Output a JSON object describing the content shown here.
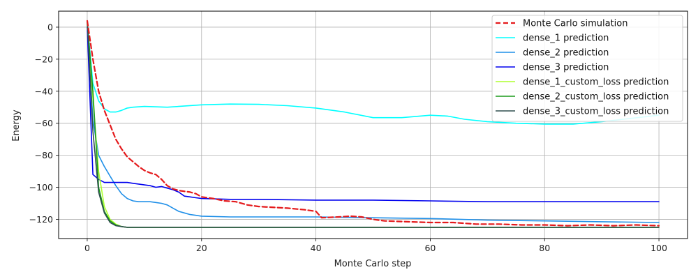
{
  "chart_data": {
    "type": "line",
    "xlabel": "Monte Carlo step",
    "ylabel": "Energy",
    "xlim": [
      -5,
      105
    ],
    "ylim": [
      -132,
      10
    ],
    "xticks": [
      0,
      20,
      40,
      60,
      80,
      100
    ],
    "yticks": [
      0,
      -20,
      -40,
      -60,
      -80,
      -100,
      -120
    ],
    "grid": true,
    "legend_position": "top-right",
    "series": [
      {
        "name": "Monte Carlo simulation",
        "color": "#e41a1c",
        "style": "dashed",
        "x": [
          0,
          1,
          2,
          3,
          4,
          5,
          6,
          7,
          8,
          9,
          10,
          11,
          12,
          13,
          14,
          15,
          16,
          17,
          18,
          19,
          20,
          22,
          24,
          26,
          28,
          30,
          35,
          38,
          39,
          40,
          41,
          44,
          46,
          48,
          50,
          52,
          56,
          60,
          64,
          68,
          72,
          76,
          80,
          84,
          88,
          92,
          96,
          100
        ],
        "y": [
          4,
          -20,
          -40,
          -52,
          -61,
          -70,
          -76,
          -81,
          -84,
          -87,
          -89.5,
          -91,
          -92,
          -95,
          -99,
          -101,
          -102,
          -102.5,
          -103,
          -104,
          -106,
          -107,
          -108.5,
          -109,
          -111,
          -112,
          -113,
          -114,
          -114.5,
          -115,
          -119,
          -118.5,
          -118,
          -118.5,
          -120,
          -121,
          -121.5,
          -122,
          -122,
          -123,
          -123,
          -123.5,
          -123.5,
          -124,
          -123.5,
          -124,
          -123.5,
          -124
        ]
      },
      {
        "name": "dense_1 prediction",
        "color": "#00ffff",
        "style": "solid",
        "x": [
          0,
          1,
          2,
          3,
          4,
          5,
          6,
          7,
          8,
          10,
          14,
          20,
          25,
          30,
          35,
          40,
          45,
          50,
          55,
          60,
          63,
          66,
          70,
          75,
          80,
          85,
          90,
          95,
          100
        ],
        "y": [
          3,
          -35,
          -46,
          -51,
          -53,
          -53,
          -52,
          -50.5,
          -50,
          -49.5,
          -50,
          -48.5,
          -48,
          -48.2,
          -49,
          -50.5,
          -53,
          -56.5,
          -56.5,
          -55,
          -55.5,
          -57.5,
          -59,
          -60,
          -60.5,
          -60.5,
          -59,
          -57,
          -55
        ]
      },
      {
        "name": "dense_2 prediction",
        "color": "#1f8fe8",
        "style": "solid",
        "x": [
          0,
          1,
          2,
          3,
          4,
          5,
          6,
          7,
          8,
          9,
          10,
          11,
          12,
          13,
          14,
          15,
          16,
          17,
          18,
          19,
          20,
          25,
          30,
          35,
          40,
          50,
          60,
          70,
          80,
          90,
          100
        ],
        "y": [
          2,
          -58,
          -80,
          -87,
          -93,
          -99,
          -104,
          -107,
          -108.5,
          -109,
          -109,
          -109,
          -109.5,
          -110,
          -111,
          -113,
          -115,
          -116,
          -117,
          -117.5,
          -118,
          -118.5,
          -118.5,
          -118.5,
          -118.5,
          -119,
          -119.5,
          -120.5,
          -121,
          -121.5,
          -122
        ]
      },
      {
        "name": "dense_3 prediction",
        "color": "#0000ee",
        "style": "solid",
        "x": [
          0,
          1,
          2,
          3,
          4,
          5,
          6,
          7,
          8,
          9,
          10,
          11,
          12,
          13,
          14,
          15,
          16,
          17,
          18,
          19,
          20,
          25,
          30,
          40,
          50,
          60,
          70,
          80,
          90,
          100
        ],
        "y": [
          0,
          -92,
          -95,
          -97,
          -97,
          -97,
          -97,
          -97,
          -97.5,
          -98,
          -98.5,
          -99,
          -100,
          -99.5,
          -100.5,
          -101.5,
          -103,
          -105.5,
          -106,
          -106.5,
          -107,
          -107.5,
          -107.5,
          -108,
          -108,
          -108.5,
          -109,
          -109,
          -109,
          -109
        ]
      },
      {
        "name": "dense_1_custom_loss prediction",
        "color": "#adff2f",
        "style": "solid",
        "x": [
          0,
          1,
          2,
          3,
          4,
          5,
          6,
          7,
          8,
          10,
          20,
          40,
          60,
          80,
          100
        ],
        "y": [
          2,
          -45,
          -90,
          -112,
          -120,
          -123,
          -124.5,
          -125,
          -125,
          -125,
          -125,
          -125,
          -125,
          -125,
          -125
        ]
      },
      {
        "name": "dense_2_custom_loss prediction",
        "color": "#1a9a1a",
        "style": "solid",
        "x": [
          0,
          1,
          2,
          3,
          4,
          5,
          6,
          7,
          8,
          10,
          20,
          40,
          60,
          80,
          100
        ],
        "y": [
          3,
          -40,
          -100,
          -115,
          -121,
          -123.5,
          -124.5,
          -125,
          -125,
          -125,
          -125,
          -125,
          -125,
          -125,
          -125
        ]
      },
      {
        "name": "dense_3_custom_loss prediction",
        "color": "#2f4f4f",
        "style": "solid",
        "x": [
          0,
          1,
          2,
          3,
          4,
          5,
          6,
          7,
          8,
          10,
          20,
          40,
          60,
          80,
          100
        ],
        "y": [
          4,
          -65,
          -103,
          -116,
          -122,
          -124,
          -124.5,
          -125,
          -125,
          -125,
          -125,
          -125,
          -125,
          -125,
          -125
        ]
      }
    ]
  }
}
